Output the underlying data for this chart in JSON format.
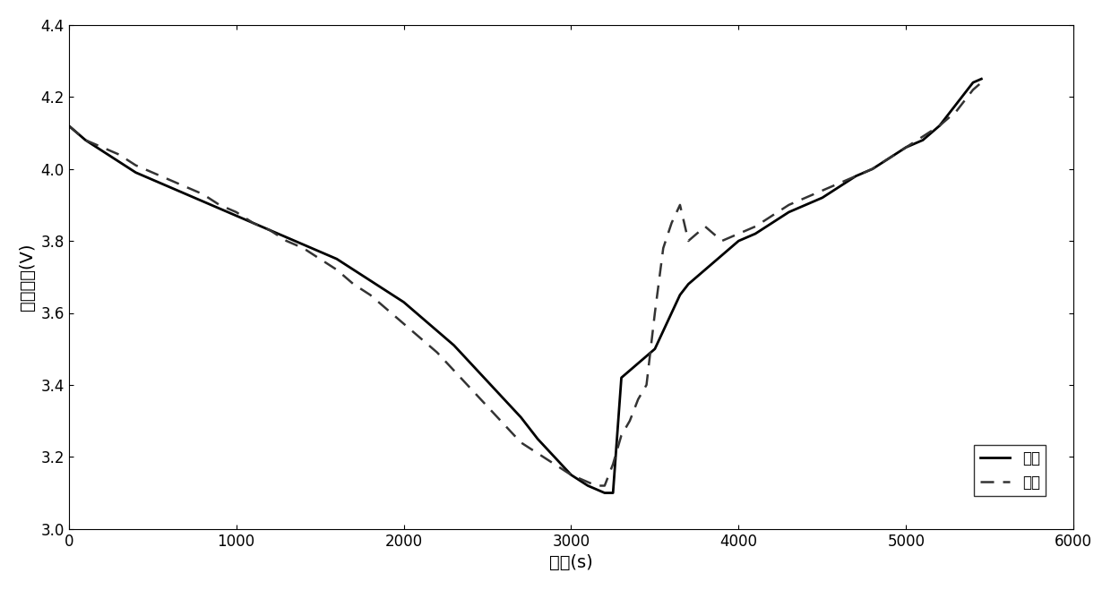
{
  "title": "",
  "xlabel": "时间(s)",
  "ylabel": "电压变化(V)",
  "xlim": [
    0,
    6000
  ],
  "ylim": [
    3.0,
    4.4
  ],
  "xticks": [
    0,
    1000,
    2000,
    3000,
    4000,
    5000,
    6000
  ],
  "yticks": [
    3.0,
    3.2,
    3.4,
    3.6,
    3.8,
    4.0,
    4.2,
    4.4
  ],
  "legend_labels": [
    "模拟",
    "实验"
  ],
  "background_color": "#ffffff",
  "simulation_color": "#000000",
  "experiment_color": "#333333",
  "simulation_x": [
    0,
    50,
    100,
    200,
    300,
    400,
    500,
    600,
    700,
    800,
    900,
    1000,
    1100,
    1200,
    1300,
    1400,
    1500,
    1600,
    1700,
    1800,
    1900,
    2000,
    2100,
    2200,
    2300,
    2400,
    2500,
    2600,
    2700,
    2800,
    2900,
    3000,
    3100,
    3150,
    3200,
    3250,
    3300,
    3350,
    3400,
    3450,
    3500,
    3550,
    3600,
    3650,
    3700,
    3750,
    3800,
    3850,
    3900,
    3950,
    4000,
    4100,
    4200,
    4300,
    4400,
    4500,
    4600,
    4700,
    4800,
    4900,
    5000,
    5100,
    5200,
    5300,
    5400,
    5450
  ],
  "simulation_y": [
    4.12,
    4.1,
    4.08,
    4.05,
    4.02,
    3.99,
    3.97,
    3.95,
    3.93,
    3.91,
    3.89,
    3.87,
    3.85,
    3.83,
    3.81,
    3.79,
    3.77,
    3.75,
    3.72,
    3.69,
    3.66,
    3.63,
    3.59,
    3.55,
    3.51,
    3.46,
    3.41,
    3.36,
    3.31,
    3.25,
    3.2,
    3.15,
    3.12,
    3.11,
    3.1,
    3.1,
    3.42,
    3.44,
    3.46,
    3.48,
    3.5,
    3.55,
    3.6,
    3.65,
    3.68,
    3.7,
    3.72,
    3.74,
    3.76,
    3.78,
    3.8,
    3.82,
    3.85,
    3.88,
    3.9,
    3.92,
    3.95,
    3.98,
    4.0,
    4.03,
    4.06,
    4.08,
    4.12,
    4.18,
    4.24,
    4.25
  ],
  "experiment_x": [
    0,
    50,
    100,
    200,
    300,
    400,
    500,
    600,
    700,
    800,
    900,
    1000,
    1100,
    1200,
    1300,
    1400,
    1500,
    1600,
    1700,
    1800,
    1900,
    2000,
    2100,
    2200,
    2300,
    2400,
    2500,
    2600,
    2700,
    2800,
    2900,
    3000,
    3100,
    3150,
    3200,
    3250,
    3300,
    3350,
    3400,
    3450,
    3500,
    3550,
    3600,
    3650,
    3700,
    3750,
    3800,
    3900,
    4000,
    4100,
    4200,
    4300,
    4400,
    4500,
    4600,
    4700,
    4800,
    4900,
    5000,
    5100,
    5200,
    5300,
    5400,
    5450
  ],
  "experiment_y": [
    4.12,
    4.1,
    4.08,
    4.06,
    4.04,
    4.01,
    3.99,
    3.97,
    3.95,
    3.93,
    3.9,
    3.88,
    3.85,
    3.83,
    3.8,
    3.78,
    3.75,
    3.72,
    3.68,
    3.65,
    3.61,
    3.57,
    3.53,
    3.49,
    3.44,
    3.39,
    3.34,
    3.29,
    3.24,
    3.21,
    3.18,
    3.15,
    3.13,
    3.12,
    3.12,
    3.18,
    3.26,
    3.3,
    3.36,
    3.4,
    3.6,
    3.78,
    3.85,
    3.9,
    3.8,
    3.82,
    3.84,
    3.8,
    3.82,
    3.84,
    3.87,
    3.9,
    3.92,
    3.94,
    3.96,
    3.98,
    4.0,
    4.03,
    4.06,
    4.09,
    4.12,
    4.16,
    4.22,
    4.24
  ]
}
